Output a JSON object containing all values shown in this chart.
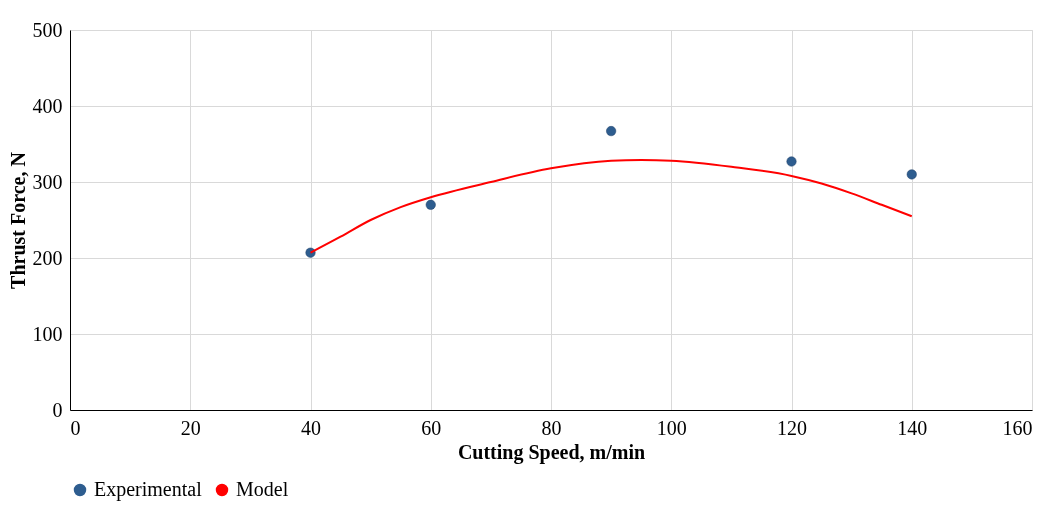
{
  "chart_data": {
    "type": "scatter",
    "xlabel": "Cutting Speed, m/min",
    "ylabel": "Thrust Force, N",
    "xlim": [
      0,
      160
    ],
    "xticks": [
      0,
      20,
      40,
      60,
      80,
      100,
      120,
      140,
      160
    ],
    "ylim": [
      0,
      500
    ],
    "yticks": [
      0,
      100,
      200,
      300,
      400,
      500
    ],
    "grid": true,
    "legend": "bottom",
    "series": [
      {
        "name": "Experimental",
        "color": "#2e5d8f",
        "marker": "circle",
        "x": [
          40,
          60,
          90,
          120,
          140
        ],
        "values": [
          207,
          270,
          367,
          327,
          310
        ]
      },
      {
        "name": "Model",
        "type": "line",
        "color": "#ff0000",
        "line_style": "solid",
        "x": [
          40,
          45,
          50,
          55,
          60,
          70,
          80,
          90,
          95,
          100,
          110,
          120,
          125,
          130,
          135,
          140
        ],
        "values": [
          207,
          228,
          250,
          267,
          280,
          300,
          318,
          328,
          329,
          328,
          320,
          308,
          298,
          285,
          270,
          255
        ]
      }
    ]
  }
}
